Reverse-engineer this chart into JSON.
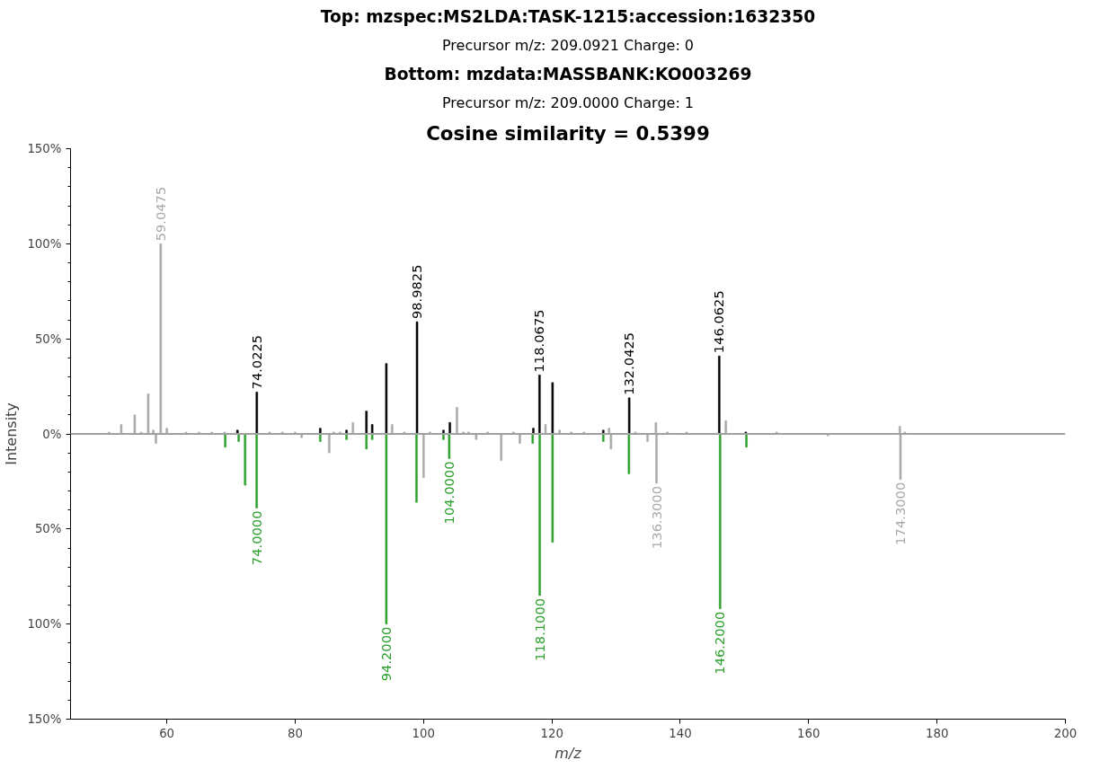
{
  "chart_data": {
    "type": "bar",
    "title": "Cosine similarity = 0.5399",
    "subtitle": "Precursor m/z: 209.0921 Charge: 0",
    "xlabel": "m/z",
    "ylabel": "Intensity",
    "series": [
      {
        "color": "#000000",
        "x": [
          71.0,
          74.0225,
          83.9,
          88.0,
          91.1,
          92.0,
          94.2,
          98.9825,
          103.1,
          104.1,
          117.1,
          118.0675,
          120.1,
          128.0,
          132.0425,
          146.0625,
          150.2
        ],
        "values": [
          2,
          22,
          3,
          2,
          12,
          5,
          37,
          59,
          2,
          6,
          3,
          31,
          27,
          2,
          19,
          41,
          1
        ]
      },
      {
        "color": "#a9a9a9",
        "x": [
          51.0,
          52.9,
          55.0,
          56.0,
          57.1,
          57.9,
          59.0475,
          60.0,
          63.0,
          65.0,
          67.0,
          69.0,
          76.0,
          78.0,
          80.0,
          86.0,
          87.0,
          89.0,
          95.1,
          97.0,
          101.0,
          105.2,
          106.2,
          107.0,
          110.0,
          114.0,
          119.0,
          121.2,
          123.0,
          125.0,
          128.9,
          133.0,
          136.2,
          138.0,
          141.0,
          147.1,
          155.0,
          174.2,
          175.0
        ],
        "values": [
          1,
          5,
          10,
          1,
          21,
          2,
          100,
          3,
          1,
          1,
          1,
          1,
          1,
          1,
          1,
          1,
          1,
          6,
          5,
          1,
          1,
          14,
          1,
          1,
          1,
          1,
          5,
          2,
          1,
          1,
          3,
          1,
          6,
          1,
          1,
          7,
          1,
          4,
          1
        ]
      },
      {
        "color": "#2ca02c",
        "x": [
          69.1,
          71.2,
          72.2,
          74.0,
          83.9,
          88.0,
          91.1,
          92.0,
          94.2,
          98.9,
          103.1,
          104.0,
          117.0,
          118.1,
          120.1,
          128.0,
          132.0,
          146.2,
          150.3
        ],
        "values": [
          -7,
          -4,
          -27,
          -39,
          -4,
          -3,
          -8,
          -3,
          -100,
          -36,
          -3,
          -13,
          -5,
          -85,
          -57,
          -4,
          -21,
          -92,
          -7
        ]
      },
      {
        "color": "#a9a9a9",
        "x": [
          58.3,
          81.0,
          85.3,
          100.0,
          108.2,
          112.1,
          115.0,
          129.2,
          134.9,
          136.3,
          163.0,
          174.3
        ],
        "values": [
          -5,
          -2,
          -10,
          -23,
          -3,
          -14,
          -5,
          -8,
          -4,
          -26,
          -1,
          -24
        ]
      }
    ],
    "annotations": [
      "Top: mzspec:MS2LDA:TASK-1215:accession:1632350",
      "Bottom: mzdata:MASSBANK:KO003269",
      "Precursor m/z: 209.0000 Charge: 1",
      {
        "text": "59.0475",
        "x": 59.0475,
        "y": 100
      },
      {
        "text": "74.0225",
        "x": 74.0225,
        "y": 22
      },
      {
        "text": "98.9825",
        "x": 98.9825,
        "y": 59
      },
      {
        "text": "118.0675",
        "x": 118.0675,
        "y": 31
      },
      {
        "text": "132.0425",
        "x": 132.0425,
        "y": 19
      },
      {
        "text": "146.0625",
        "x": 146.0625,
        "y": 41
      },
      {
        "text": "74.0000",
        "x": 74.0,
        "y": -39
      },
      {
        "text": "94.2000",
        "x": 94.2,
        "y": -100
      },
      {
        "text": "104.0000",
        "x": 104.0,
        "y": -13
      },
      {
        "text": "118.1000",
        "x": 118.1,
        "y": -85
      },
      {
        "text": "136.3000",
        "x": 136.3,
        "y": -26
      },
      {
        "text": "146.2000",
        "x": 146.2,
        "y": -92
      },
      {
        "text": "174.3000",
        "x": 174.3,
        "y": -24
      }
    ],
    "ref_lines": [
      {
        "axis": "y",
        "value": 0,
        "color": "#a0a0a0"
      }
    ],
    "xlim": [
      45,
      200
    ],
    "xticks": [
      60,
      80,
      100,
      120,
      140,
      160,
      180,
      200
    ],
    "ylim": [
      -150,
      150
    ],
    "yticks": [
      {
        "value": -150,
        "label": "150%"
      },
      {
        "value": -100,
        "label": "100%"
      },
      {
        "value": -50,
        "label": "50%"
      },
      {
        "value": 0,
        "label": "0%"
      },
      {
        "value": 50,
        "label": "50%"
      },
      {
        "value": 100,
        "label": "100%"
      },
      {
        "value": 150,
        "label": "150%"
      },
      {
        "value": -140,
        "label": null
      },
      {
        "value": -130,
        "label": null
      },
      {
        "value": -120,
        "label": null
      },
      {
        "value": -110,
        "label": null
      },
      {
        "value": -90,
        "label": null
      },
      {
        "value": -80,
        "label": null
      },
      {
        "value": -70,
        "label": null
      },
      {
        "value": -60,
        "label": null
      },
      {
        "value": -40,
        "label": null
      },
      {
        "value": -30,
        "label": null
      },
      {
        "value": -20,
        "label": null
      },
      {
        "value": -10,
        "label": null
      },
      {
        "value": 10,
        "label": null
      },
      {
        "value": 20,
        "label": null
      },
      {
        "value": 30,
        "label": null
      },
      {
        "value": 40,
        "label": null
      },
      {
        "value": 60,
        "label": null
      },
      {
        "value": 70,
        "label": null
      },
      {
        "value": 80,
        "label": null
      },
      {
        "value": 90,
        "label": null
      },
      {
        "value": 110,
        "label": null
      },
      {
        "value": 120,
        "label": null
      },
      {
        "value": 130,
        "label": null
      },
      {
        "value": 140,
        "label": null
      }
    ]
  }
}
